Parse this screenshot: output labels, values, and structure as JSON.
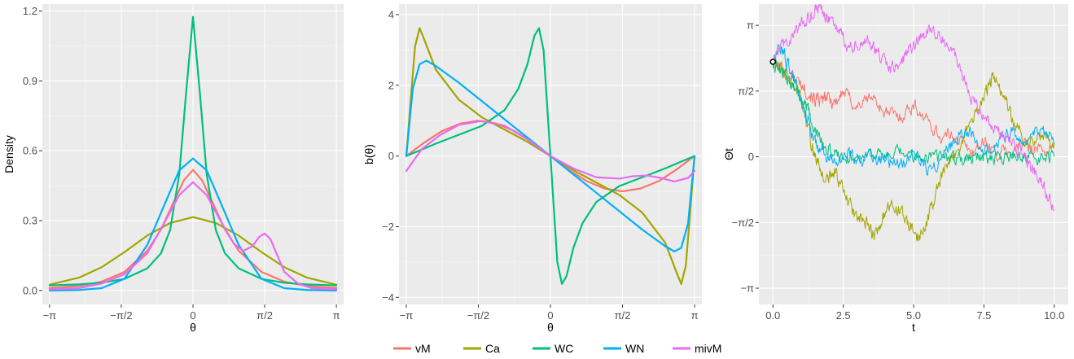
{
  "colors": {
    "vM": "#F8766D",
    "Ca": "#A3A500",
    "WC": "#00BF7D",
    "WN": "#00B0F6",
    "mivM": "#E76BF3"
  },
  "legend": {
    "items": [
      "vM",
      "Ca",
      "WC",
      "WN",
      "mivM"
    ]
  },
  "chart_data": [
    {
      "type": "line",
      "xlabel": "θ",
      "ylabel": "Density",
      "xlim": [
        -3.3,
        3.3
      ],
      "ylim": [
        -0.06,
        1.23
      ],
      "x_ticks": [
        {
          "value": -3.14159,
          "label": "−π"
        },
        {
          "value": -1.5708,
          "label": "−π/2"
        },
        {
          "value": 0,
          "label": "0"
        },
        {
          "value": 1.5708,
          "label": "π/2"
        },
        {
          "value": 3.14159,
          "label": "π"
        }
      ],
      "y_ticks": [
        {
          "value": 0,
          "label": "0.0"
        },
        {
          "value": 0.3,
          "label": "0.3"
        },
        {
          "value": 0.6,
          "label": "0.6"
        },
        {
          "value": 0.9,
          "label": "0.9"
        },
        {
          "value": 1.2,
          "label": "1.2"
        }
      ],
      "series": [
        {
          "name": "vM",
          "x": [
            -3.14,
            -2.5,
            -2.0,
            -1.5,
            -1.0,
            -0.7,
            -0.4,
            -0.2,
            0,
            0.2,
            0.4,
            0.7,
            1.0,
            1.5,
            2.0,
            2.5,
            3.14
          ],
          "y": [
            0.011,
            0.019,
            0.038,
            0.08,
            0.171,
            0.262,
            0.39,
            0.473,
            0.518,
            0.473,
            0.39,
            0.262,
            0.171,
            0.08,
            0.038,
            0.019,
            0.011
          ]
        },
        {
          "name": "Ca",
          "x": [
            -3.14,
            -2.5,
            -2.0,
            -1.5,
            -1.0,
            -0.5,
            0,
            0.5,
            1.0,
            1.5,
            2.0,
            2.5,
            3.14
          ],
          "y": [
            0.025,
            0.055,
            0.1,
            0.165,
            0.236,
            0.29,
            0.315,
            0.29,
            0.236,
            0.165,
            0.1,
            0.055,
            0.025
          ]
        },
        {
          "name": "WC",
          "x": [
            -3.14,
            -2.5,
            -2.0,
            -1.5,
            -1.0,
            -0.7,
            -0.5,
            -0.3,
            -0.15,
            0,
            0.15,
            0.3,
            0.5,
            0.7,
            1.0,
            1.5,
            2.0,
            2.5,
            3.14
          ],
          "y": [
            0.022,
            0.026,
            0.033,
            0.05,
            0.095,
            0.16,
            0.26,
            0.5,
            0.85,
            1.175,
            0.85,
            0.5,
            0.26,
            0.16,
            0.095,
            0.05,
            0.033,
            0.026,
            0.022
          ]
        },
        {
          "name": "WN",
          "x": [
            -3.14,
            -2.5,
            -2.0,
            -1.5,
            -1.0,
            -0.6,
            -0.3,
            0,
            0.3,
            0.6,
            1.0,
            1.5,
            2.0,
            2.5,
            3.14
          ],
          "y": [
            0.0,
            0.002,
            0.01,
            0.05,
            0.196,
            0.38,
            0.516,
            0.567,
            0.516,
            0.38,
            0.196,
            0.05,
            0.01,
            0.002,
            0.0
          ]
        },
        {
          "name": "mivM",
          "x": [
            -3.14,
            -2.5,
            -2.0,
            -1.5,
            -1.0,
            -0.6,
            -0.3,
            0,
            0.3,
            0.6,
            0.9,
            1.1,
            1.3,
            1.45,
            1.57,
            1.7,
            1.85,
            2.0,
            2.3,
            2.6,
            3.14
          ],
          "y": [
            0.005,
            0.01,
            0.03,
            0.07,
            0.16,
            0.3,
            0.41,
            0.465,
            0.41,
            0.3,
            0.2,
            0.17,
            0.19,
            0.23,
            0.245,
            0.22,
            0.15,
            0.08,
            0.03,
            0.01,
            0.005
          ]
        }
      ]
    },
    {
      "type": "line",
      "xlabel": "θ",
      "ylabel": "b(θ)",
      "xlim": [
        -3.3,
        3.3
      ],
      "ylim": [
        -4.2,
        4.3
      ],
      "x_ticks": [
        {
          "value": -3.14159,
          "label": "−π"
        },
        {
          "value": -1.5708,
          "label": "−π/2"
        },
        {
          "value": 0,
          "label": "0"
        },
        {
          "value": 1.5708,
          "label": "π/2"
        },
        {
          "value": 3.14159,
          "label": "π"
        }
      ],
      "y_ticks": [
        {
          "value": -4,
          "label": "−4"
        },
        {
          "value": -2,
          "label": "−2"
        },
        {
          "value": 0,
          "label": "0"
        },
        {
          "value": 2,
          "label": "2"
        },
        {
          "value": 4,
          "label": "4"
        }
      ],
      "series": [
        {
          "name": "vM",
          "x": [
            -3.14,
            -2.75,
            -2.36,
            -1.96,
            -1.57,
            -1.18,
            -0.79,
            -0.39,
            0,
            0.39,
            0.79,
            1.18,
            1.57,
            1.96,
            2.36,
            2.75,
            3.14
          ],
          "y": [
            0,
            0.38,
            0.71,
            0.92,
            1,
            0.92,
            0.71,
            0.38,
            0,
            -0.38,
            -0.71,
            -0.92,
            -1,
            -0.92,
            -0.71,
            -0.38,
            0
          ]
        },
        {
          "name": "Ca",
          "x": [
            -3.14,
            -3.05,
            -2.95,
            -2.85,
            -2.75,
            -2.5,
            -2.0,
            -1.5,
            -1.0,
            -0.5,
            0,
            0.5,
            1.0,
            1.5,
            2.0,
            2.5,
            2.75,
            2.85,
            2.95,
            3.05,
            3.14
          ],
          "y": [
            0,
            1.5,
            3.1,
            3.62,
            3.3,
            2.45,
            1.6,
            1.1,
            0.75,
            0.4,
            0,
            -0.4,
            -0.75,
            -1.1,
            -1.6,
            -2.45,
            -3.3,
            -3.62,
            -3.1,
            -1.5,
            0
          ]
        },
        {
          "name": "WC",
          "x": [
            -3.14,
            -2.5,
            -2.0,
            -1.5,
            -1.0,
            -0.7,
            -0.5,
            -0.35,
            -0.25,
            -0.15,
            0,
            0.15,
            0.25,
            0.35,
            0.5,
            0.7,
            1.0,
            1.5,
            2.0,
            2.5,
            3.14
          ],
          "y": [
            0,
            0.35,
            0.6,
            0.85,
            1.3,
            1.9,
            2.6,
            3.4,
            3.62,
            3.0,
            0,
            -3.0,
            -3.62,
            -3.4,
            -2.6,
            -1.9,
            -1.3,
            -0.85,
            -0.6,
            -0.35,
            0
          ]
        },
        {
          "name": "WN",
          "x": [
            -3.14,
            -3.0,
            -2.85,
            -2.7,
            -2.5,
            -2.0,
            -1.0,
            0,
            1.0,
            2.0,
            2.5,
            2.7,
            2.85,
            3.0,
            3.14
          ],
          "y": [
            0,
            1.9,
            2.6,
            2.7,
            2.55,
            2.08,
            1.04,
            0,
            -1.04,
            -2.08,
            -2.55,
            -2.7,
            -2.6,
            -1.9,
            0
          ]
        },
        {
          "name": "mivM",
          "x": [
            -3.14,
            -2.8,
            -2.4,
            -2.0,
            -1.5,
            -1.0,
            -0.5,
            0,
            0.5,
            1.0,
            1.5,
            1.8,
            2.1,
            2.4,
            2.7,
            3.0,
            3.14
          ],
          "y": [
            -0.42,
            0.2,
            0.6,
            0.88,
            0.99,
            0.86,
            0.47,
            0,
            -0.35,
            -0.6,
            -0.64,
            -0.57,
            -0.55,
            -0.62,
            -0.72,
            -0.62,
            -0.42
          ]
        }
      ]
    },
    {
      "type": "line",
      "xlabel": "t",
      "ylabel": "Θt",
      "xlim": [
        -0.5,
        10.5
      ],
      "ylim": [
        -3.53,
        3.65
      ],
      "x_ticks": [
        {
          "value": 0,
          "label": "0.0"
        },
        {
          "value": 2.5,
          "label": "2.5"
        },
        {
          "value": 5,
          "label": "5.0"
        },
        {
          "value": 7.5,
          "label": "7.5"
        },
        {
          "value": 10,
          "label": "10.0"
        }
      ],
      "y_ticks": [
        {
          "value": -3.14159,
          "label": "−π"
        },
        {
          "value": -1.5708,
          "label": "−π/2"
        },
        {
          "value": 0,
          "label": "0"
        },
        {
          "value": 1.5708,
          "label": "π/2"
        },
        {
          "value": 3.14159,
          "label": "π"
        }
      ],
      "start_point": {
        "t": 0,
        "theta": 2.27
      },
      "series": [
        {
          "name": "vM",
          "t": [
            0,
            0.5,
            1.0,
            1.4,
            1.6,
            1.9,
            2.2,
            2.5,
            3.0,
            3.5,
            4.0,
            4.5,
            5.0,
            5.5,
            6.0,
            6.5,
            7.0,
            7.5,
            8.0,
            8.5,
            9.0,
            9.5,
            10.0
          ],
          "y": [
            2.27,
            2.05,
            1.75,
            1.45,
            1.3,
            1.4,
            1.3,
            1.55,
            1.2,
            1.45,
            1.05,
            0.95,
            1.25,
            0.85,
            0.45,
            0.55,
            0.1,
            0.35,
            0.05,
            0.15,
            0.3,
            0.15,
            0.2
          ]
        },
        {
          "name": "Ca",
          "t": [
            0,
            0.3,
            0.7,
            1.0,
            1.3,
            1.6,
            1.9,
            2.2,
            2.6,
            3.0,
            3.3,
            3.6,
            4.0,
            4.4,
            4.8,
            5.2,
            5.6,
            6.0,
            6.5,
            7.0,
            7.5,
            7.8,
            8.2,
            8.6,
            9.0,
            9.5,
            10.0
          ],
          "y": [
            2.27,
            2.1,
            1.8,
            1.4,
            0.5,
            -0.2,
            -0.6,
            -0.3,
            -1.0,
            -1.5,
            -1.6,
            -1.9,
            -1.3,
            -1.2,
            -1.6,
            -2.0,
            -1.3,
            -0.5,
            0.1,
            0.8,
            1.4,
            1.9,
            1.5,
            0.7,
            0.4,
            0.5,
            0.3
          ]
        },
        {
          "name": "WC",
          "t": [
            0,
            0.3,
            0.6,
            0.9,
            1.2,
            1.5,
            1.8,
            2.2,
            2.6,
            3.0,
            3.5,
            4.0,
            4.5,
            5.0,
            5.5,
            6.0,
            6.5,
            7.0,
            7.5,
            8.0,
            8.5,
            9.0,
            9.5,
            10.0
          ],
          "y": [
            2.27,
            2.0,
            1.85,
            1.55,
            1.15,
            0.6,
            0.25,
            0.1,
            0.0,
            -0.05,
            0.15,
            -0.05,
            0.1,
            -0.05,
            0.05,
            0.0,
            -0.05,
            0.05,
            0.0,
            -0.05,
            0.05,
            0.0,
            -0.05,
            0.0
          ]
        },
        {
          "name": "WN",
          "t": [
            0,
            0.3,
            0.6,
            0.9,
            1.2,
            1.5,
            1.8,
            2.2,
            2.6,
            3.0,
            3.5,
            4.0,
            4.5,
            5.0,
            5.5,
            6.0,
            6.5,
            7.0,
            7.5,
            8.0,
            8.5,
            9.0,
            9.5,
            10.0
          ],
          "y": [
            2.27,
            2.6,
            2.1,
            1.6,
            1.0,
            0.3,
            0.1,
            -0.2,
            0.1,
            -0.1,
            0.05,
            -0.1,
            -0.2,
            0.1,
            -0.3,
            0.0,
            0.4,
            0.6,
            0.2,
            0.4,
            0.6,
            0.2,
            0.7,
            0.3
          ]
        },
        {
          "name": "mivM",
          "t": [
            0,
            0.4,
            0.8,
            1.2,
            1.6,
            2.0,
            2.4,
            2.8,
            3.2,
            3.6,
            4.0,
            4.4,
            4.8,
            5.2,
            5.6,
            6.0,
            6.4,
            6.8,
            7.2,
            7.6,
            8.0,
            8.4,
            8.8,
            9.2,
            9.6,
            10.0
          ],
          "y": [
            2.27,
            2.7,
            2.95,
            3.3,
            3.6,
            3.3,
            2.9,
            2.6,
            2.85,
            2.6,
            2.2,
            2.1,
            2.5,
            2.8,
            3.1,
            2.9,
            2.5,
            1.9,
            1.2,
            0.9,
            0.6,
            0.4,
            0.1,
            -0.3,
            -0.7,
            -1.3
          ]
        }
      ]
    }
  ]
}
